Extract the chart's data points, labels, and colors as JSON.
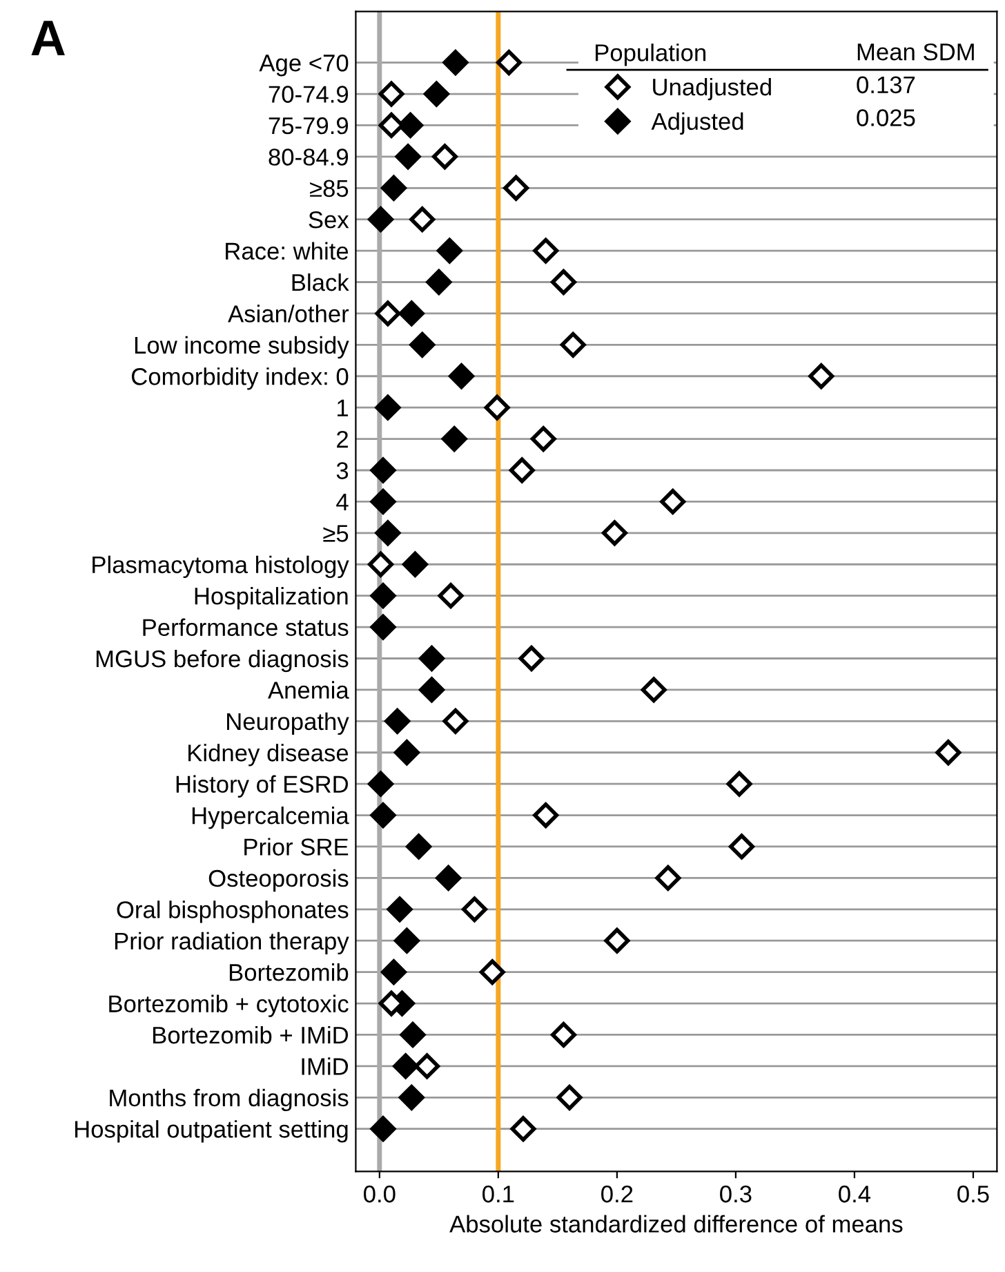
{
  "chart_data": {
    "type": "scatter",
    "title": "A",
    "xlabel": "Absolute standardized difference of means",
    "categories": [
      "Age <70",
      "70-74.9",
      "75-79.9",
      "80-84.9",
      "≥85",
      "Sex",
      "Race: white",
      "Black",
      "Asian/other",
      "Low income subsidy",
      "Comorbidity index: 0",
      "1",
      "2",
      "3",
      "4",
      "≥5",
      "Plasmacytoma histology",
      "Hospitalization",
      "Performance status",
      "MGUS before diagnosis",
      "Anemia",
      "Neuropathy",
      "Kidney disease",
      "History of ESRD",
      "Hypercalcemia",
      "Prior SRE",
      "Osteoporosis",
      "Oral bisphosphonates",
      "Prior radiation therapy",
      "Bortezomib",
      "Bortezomib + cytotoxic",
      "Bortezomib + IMiD",
      "IMiD",
      "Months from diagnosis",
      "Hospital outpatient setting"
    ],
    "series": [
      {
        "name": "Unadjusted",
        "color": "#000000",
        "values": [
          0.109,
          0.01,
          0.01,
          0.055,
          0.115,
          0.036,
          0.14,
          0.155,
          0.007,
          0.163,
          0.372,
          0.099,
          0.138,
          0.12,
          0.247,
          0.198,
          0.001,
          0.06,
          null,
          0.128,
          0.231,
          0.064,
          0.479,
          0.303,
          0.14,
          0.305,
          0.243,
          0.08,
          0.2,
          0.095,
          0.01,
          0.155,
          0.04,
          0.16,
          0.121
        ]
      },
      {
        "name": "Adjusted",
        "color": "#000000",
        "values": [
          0.064,
          0.048,
          0.026,
          0.024,
          0.012,
          0.001,
          0.059,
          0.05,
          0.027,
          0.036,
          0.069,
          0.007,
          0.063,
          0.003,
          0.003,
          0.007,
          0.03,
          0.003,
          0.003,
          0.044,
          0.044,
          0.015,
          0.023,
          0.001,
          0.003,
          0.033,
          0.058,
          0.017,
          0.023,
          0.012,
          0.019,
          0.028,
          0.022,
          0.027,
          0.003
        ]
      }
    ],
    "xlim": [
      -0.02,
      0.52
    ],
    "xticks": [
      {
        "value": 0,
        "label": "0.0"
      },
      0.1,
      0.2,
      0.3,
      0.4,
      0.5
    ],
    "ref_lines": [
      {
        "axis": "x",
        "value": 0,
        "color": "#aaaaaa"
      },
      {
        "axis": "x",
        "value": 0.1,
        "color": "#f5a623"
      }
    ],
    "orientation": "horizontal",
    "grid": "y",
    "marker": "diamond",
    "legend": "top right",
    "legend_title": "Population",
    "annotations": [
      "Mean SDM",
      "0.137",
      "0.025"
    ]
  }
}
